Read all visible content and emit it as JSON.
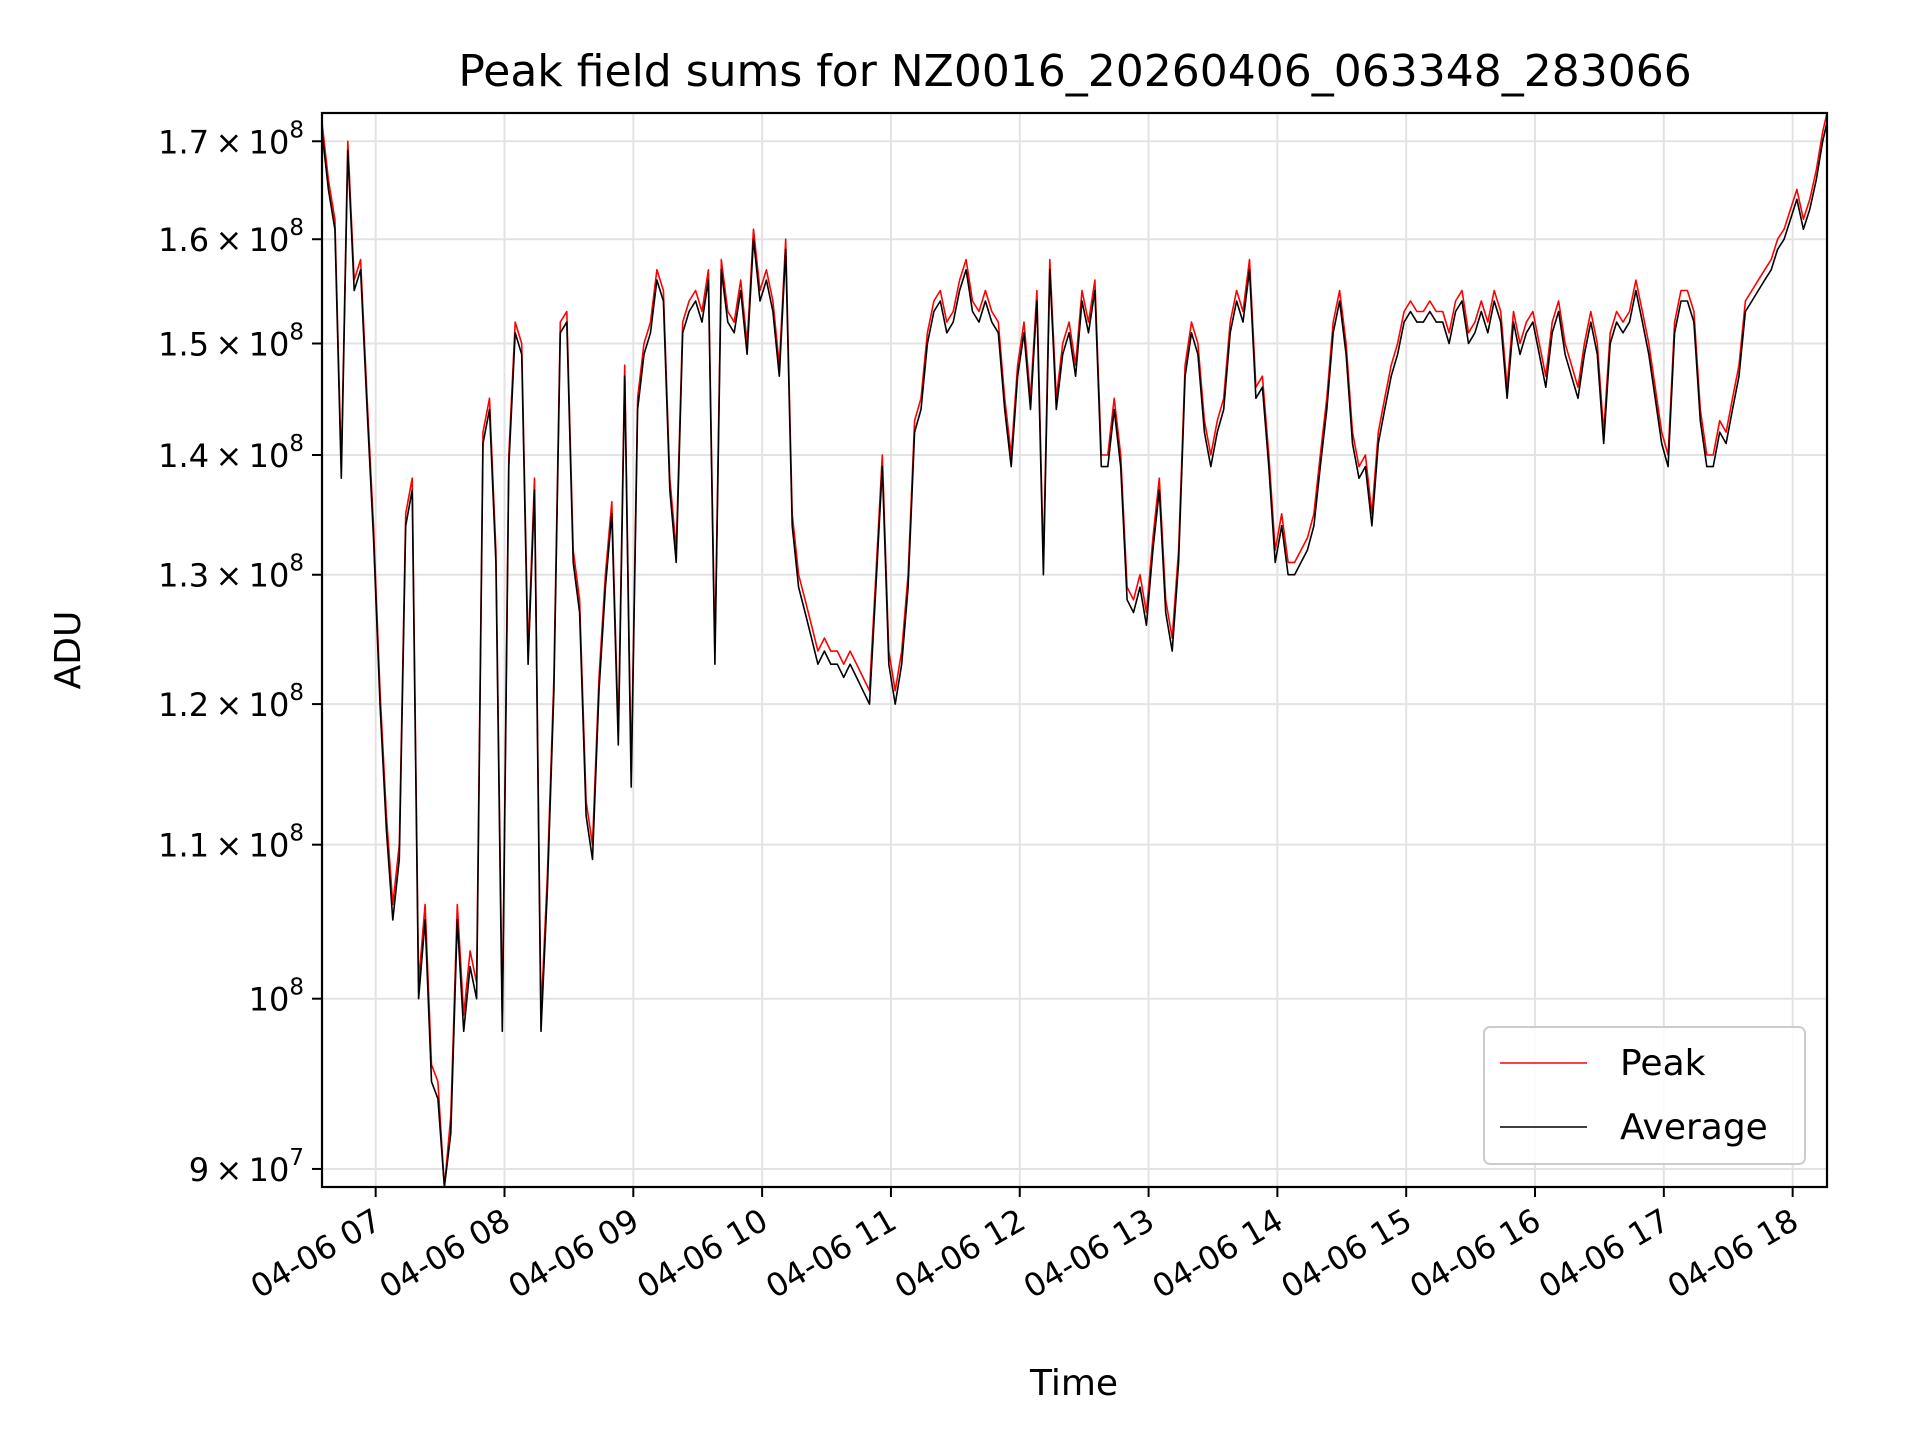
{
  "chart_data": {
    "type": "line",
    "title": "Peak field sums for NZ0016_20260406_063348_283066",
    "xlabel": "Time",
    "ylabel": "ADU",
    "yscale": "log",
    "ylim": [
      89000000,
      173000000
    ],
    "xlim": [
      "2026-04-06 06:35",
      "2026-04-06 18:16"
    ],
    "grid": true,
    "legend_position": "lower-right",
    "x_ticks": [
      "04-06 07",
      "04-06 08",
      "04-06 09",
      "04-06 10",
      "04-06 11",
      "04-06 12",
      "04-06 13",
      "04-06 14",
      "04-06 15",
      "04-06 16",
      "04-06 17",
      "04-06 18"
    ],
    "y_ticks": [
      {
        "base": "9",
        "exp": "7",
        "value": 90000000
      },
      {
        "base": "",
        "exp": "8",
        "value": 100000000
      },
      {
        "base": "1.1",
        "exp": "8",
        "value": 110000000
      },
      {
        "base": "1.2",
        "exp": "8",
        "value": 120000000
      },
      {
        "base": "1.3",
        "exp": "8",
        "value": 130000000
      },
      {
        "base": "1.4",
        "exp": "8",
        "value": 140000000
      },
      {
        "base": "1.5",
        "exp": "8",
        "value": 150000000
      },
      {
        "base": "1.6",
        "exp": "8",
        "value": 160000000
      },
      {
        "base": "1.7",
        "exp": "8",
        "value": 170000000
      }
    ],
    "times": [
      "06:35",
      "06:38",
      "06:41",
      "06:44",
      "06:47",
      "06:50",
      "06:53",
      "06:56",
      "06:59",
      "07:02",
      "07:05",
      "07:08",
      "07:11",
      "07:14",
      "07:17",
      "07:20",
      "07:23",
      "07:26",
      "07:29",
      "07:32",
      "07:35",
      "07:38",
      "07:41",
      "07:44",
      "07:47",
      "07:50",
      "07:53",
      "07:56",
      "07:59",
      "08:02",
      "08:05",
      "08:08",
      "08:11",
      "08:14",
      "08:17",
      "08:20",
      "08:23",
      "08:26",
      "08:29",
      "08:32",
      "08:35",
      "08:38",
      "08:41",
      "08:44",
      "08:47",
      "08:50",
      "08:53",
      "08:56",
      "08:59",
      "09:02",
      "09:05",
      "09:08",
      "09:11",
      "09:14",
      "09:17",
      "09:20",
      "09:23",
      "09:26",
      "09:29",
      "09:32",
      "09:35",
      "09:38",
      "09:41",
      "09:44",
      "09:47",
      "09:50",
      "09:53",
      "09:56",
      "09:59",
      "10:02",
      "10:05",
      "10:08",
      "10:11",
      "10:14",
      "10:17",
      "10:20",
      "10:23",
      "10:26",
      "10:29",
      "10:32",
      "10:35",
      "10:38",
      "10:41",
      "10:44",
      "10:47",
      "10:50",
      "10:53",
      "10:56",
      "10:59",
      "11:02",
      "11:05",
      "11:08",
      "11:11",
      "11:14",
      "11:17",
      "11:20",
      "11:23",
      "11:26",
      "11:29",
      "11:32",
      "11:35",
      "11:38",
      "11:41",
      "11:44",
      "11:47",
      "11:50",
      "11:53",
      "11:56",
      "11:59",
      "12:02",
      "12:05",
      "12:08",
      "12:11",
      "12:14",
      "12:17",
      "12:20",
      "12:23",
      "12:26",
      "12:29",
      "12:32",
      "12:35",
      "12:38",
      "12:41",
      "12:44",
      "12:47",
      "12:50",
      "12:53",
      "12:56",
      "12:59",
      "13:02",
      "13:05",
      "13:08",
      "13:11",
      "13:14",
      "13:17",
      "13:20",
      "13:23",
      "13:26",
      "13:29",
      "13:32",
      "13:35",
      "13:38",
      "13:41",
      "13:44",
      "13:47",
      "13:50",
      "13:53",
      "13:56",
      "13:59",
      "14:02",
      "14:05",
      "14:08",
      "14:11",
      "14:14",
      "14:17",
      "14:20",
      "14:23",
      "14:26",
      "14:29",
      "14:32",
      "14:35",
      "14:38",
      "14:41",
      "14:44",
      "14:47",
      "14:50",
      "14:53",
      "14:56",
      "14:59",
      "15:02",
      "15:05",
      "15:08",
      "15:11",
      "15:14",
      "15:17",
      "15:20",
      "15:23",
      "15:26",
      "15:29",
      "15:32",
      "15:35",
      "15:38",
      "15:41",
      "15:44",
      "15:47",
      "15:50",
      "15:53",
      "15:56",
      "15:59",
      "16:02",
      "16:05",
      "16:08",
      "16:11",
      "16:14",
      "16:17",
      "16:20",
      "16:23",
      "16:26",
      "16:29",
      "16:32",
      "16:35",
      "16:38",
      "16:41",
      "16:44",
      "16:47",
      "16:50",
      "16:53",
      "16:56",
      "16:59",
      "17:02",
      "17:05",
      "17:08",
      "17:11",
      "17:14",
      "17:17",
      "17:20",
      "17:23",
      "17:26",
      "17:29",
      "17:32",
      "17:35",
      "17:38",
      "17:41",
      "17:44",
      "17:47",
      "17:50",
      "17:53",
      "17:56",
      "17:59",
      "18:02",
      "18:05",
      "18:08",
      "18:11",
      "18:14",
      "18:16"
    ],
    "series": [
      {
        "name": "Peak",
        "color": "#ff0000",
        "values": [
          172,
          166,
          162,
          139,
          170,
          156,
          158,
          145,
          134,
          121,
          112,
          106,
          110,
          135,
          138,
          101,
          106,
          96,
          95,
          89,
          93,
          106,
          99,
          103,
          101,
          142,
          145,
          132,
          99,
          140,
          152,
          150,
          124,
          138,
          99,
          108,
          122,
          152,
          153,
          132,
          128,
          113,
          110,
          122,
          130,
          136,
          118,
          148,
          115,
          145,
          150,
          152,
          157,
          155,
          138,
          132,
          152,
          154,
          155,
          153,
          157,
          124,
          158,
          153,
          152,
          156,
          150,
          161,
          155,
          157,
          154,
          148,
          160,
          135,
          130,
          128,
          126,
          124,
          125,
          124,
          124,
          123,
          124,
          123,
          122,
          121,
          130,
          140,
          124,
          121,
          124,
          130,
          143,
          145,
          151,
          154,
          155,
          152,
          153,
          156,
          158,
          154,
          153,
          155,
          153,
          152,
          145,
          140,
          148,
          152,
          145,
          155,
          131,
          158,
          145,
          150,
          152,
          148,
          155,
          152,
          156,
          140,
          140,
          145,
          140,
          129,
          128,
          130,
          127,
          133,
          138,
          128,
          125,
          132,
          148,
          152,
          150,
          143,
          140,
          143,
          145,
          152,
          155,
          153,
          158,
          146,
          147,
          140,
          132,
          135,
          131,
          131,
          132,
          133,
          135,
          140,
          145,
          152,
          155,
          150,
          142,
          139,
          140,
          135,
          142,
          145,
          148,
          150,
          153,
          154,
          153,
          153,
          154,
          153,
          153,
          151,
          154,
          155,
          151,
          152,
          154,
          152,
          155,
          153,
          146,
          153,
          150,
          152,
          153,
          150,
          147,
          152,
          154,
          150,
          148,
          146,
          150,
          153,
          150,
          142,
          151,
          153,
          152,
          153,
          156,
          153,
          150,
          146,
          142,
          140,
          152,
          155,
          155,
          153,
          144,
          140,
          140,
          143,
          142,
          145,
          148,
          154,
          155,
          156,
          157,
          158,
          160,
          161,
          163,
          165,
          162,
          164,
          167,
          171,
          173
        ]
      },
      {
        "name": "Average",
        "color": "#000000",
        "values": [
          171,
          165,
          161,
          138,
          169,
          155,
          157,
          144,
          133,
          120,
          111,
          105,
          109,
          134,
          137,
          100,
          105,
          95,
          94,
          89,
          92,
          105,
          98,
          102,
          100,
          141,
          144,
          131,
          98,
          139,
          151,
          149,
          123,
          137,
          98,
          107,
          121,
          151,
          152,
          131,
          127,
          112,
          109,
          121,
          129,
          135,
          117,
          147,
          114,
          144,
          149,
          151,
          156,
          154,
          137,
          131,
          151,
          153,
          154,
          152,
          156,
          123,
          157,
          152,
          151,
          155,
          149,
          160,
          154,
          156,
          153,
          147,
          159,
          134,
          129,
          127,
          125,
          123,
          124,
          123,
          123,
          122,
          123,
          122,
          121,
          120,
          129,
          139,
          123,
          120,
          123,
          129,
          142,
          144,
          150,
          153,
          154,
          151,
          152,
          155,
          157,
          153,
          152,
          154,
          152,
          151,
          144,
          139,
          147,
          151,
          144,
          154,
          130,
          157,
          144,
          149,
          151,
          147,
          154,
          151,
          155,
          139,
          139,
          144,
          139,
          128,
          127,
          129,
          126,
          132,
          137,
          127,
          124,
          131,
          147,
          151,
          149,
          142,
          139,
          142,
          144,
          151,
          154,
          152,
          157,
          145,
          146,
          139,
          131,
          134,
          130,
          130,
          131,
          132,
          134,
          139,
          144,
          151,
          154,
          149,
          141,
          138,
          139,
          134,
          141,
          144,
          147,
          149,
          152,
          153,
          152,
          152,
          153,
          152,
          152,
          150,
          153,
          154,
          150,
          151,
          153,
          151,
          154,
          152,
          145,
          152,
          149,
          151,
          152,
          149,
          146,
          151,
          153,
          149,
          147,
          145,
          149,
          152,
          149,
          141,
          150,
          152,
          151,
          152,
          155,
          152,
          149,
          145,
          141,
          139,
          151,
          154,
          154,
          152,
          143,
          139,
          139,
          142,
          141,
          144,
          147,
          153,
          154,
          155,
          156,
          157,
          159,
          160,
          162,
          164,
          161,
          163,
          166,
          170,
          172
        ]
      }
    ],
    "value_unit_multiplier": 1000000
  }
}
